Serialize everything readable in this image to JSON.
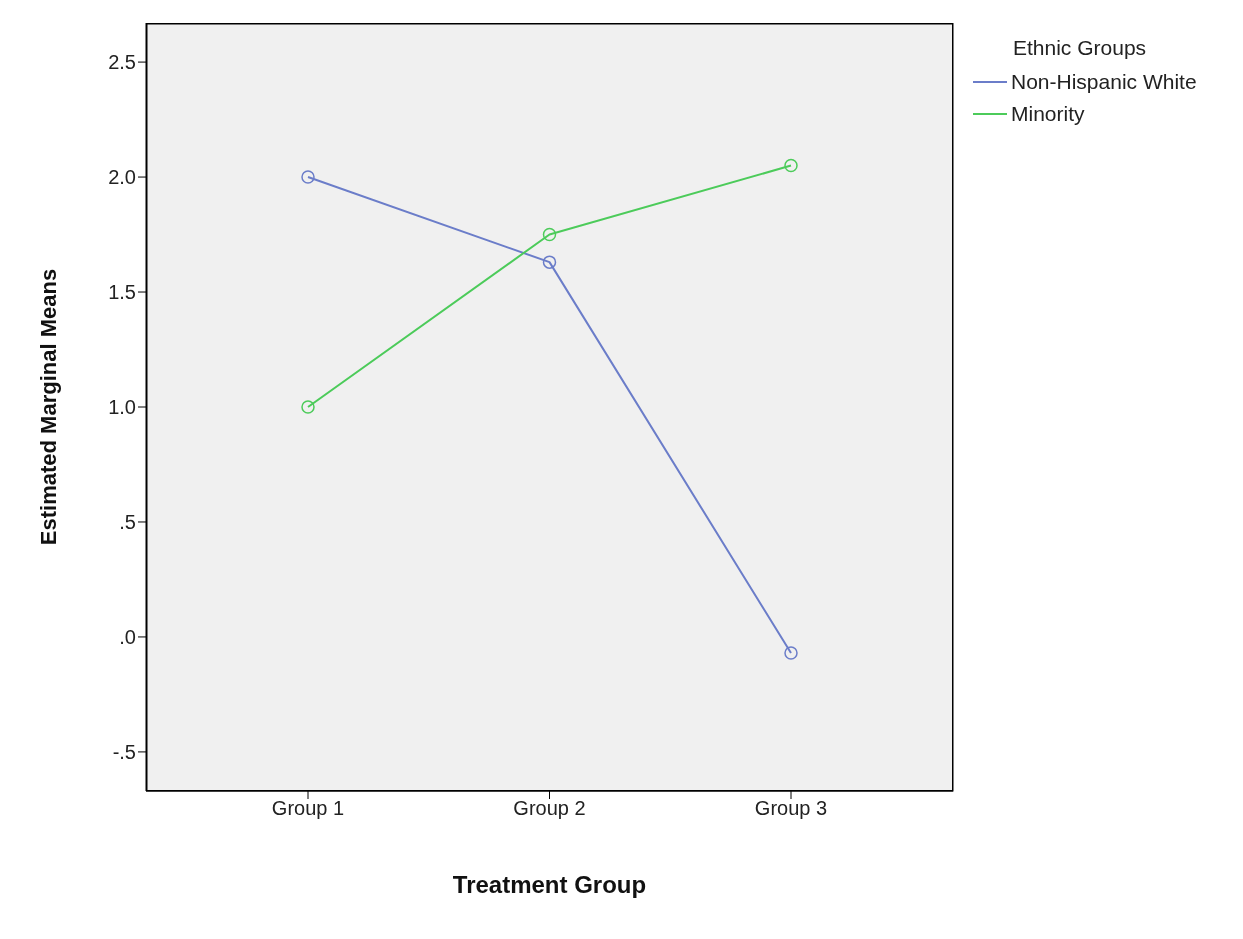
{
  "chart_data": {
    "type": "line",
    "xlabel": "Treatment Group",
    "ylabel": "Estimated Marginal Means",
    "legend_title": "Ethnic Groups",
    "categories": [
      "Group 1",
      "Group 2",
      "Group 3"
    ],
    "series": [
      {
        "name": "Non-Hispanic White",
        "color": "#6b7dc9",
        "values": [
          2.0,
          1.63,
          -0.07
        ]
      },
      {
        "name": "Minority",
        "color": "#4ccb5a",
        "values": [
          1.0,
          1.75,
          2.05
        ]
      }
    ],
    "ylim": [
      -0.67,
      2.67
    ],
    "yticks": [
      {
        "value": -0.5,
        "label": "-.5"
      },
      {
        "value": 0,
        "label": ".0"
      },
      {
        "value": 0.5,
        "label": ".5"
      },
      {
        "value": 1,
        "label": "1.0"
      },
      {
        "value": 1.5,
        "label": "1.5"
      },
      {
        "value": 2,
        "label": "2.0"
      },
      {
        "value": 2.5,
        "label": "2.5"
      }
    ],
    "legend": "top right",
    "marker": "circle",
    "line_style": "solid"
  }
}
